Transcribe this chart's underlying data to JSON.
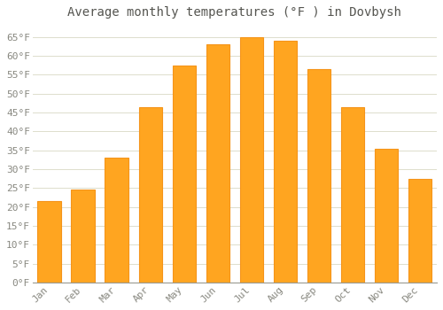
{
  "title": "Average monthly temperatures (°F ) in Dovbysh",
  "months": [
    "Jan",
    "Feb",
    "Mar",
    "Apr",
    "May",
    "Jun",
    "Jul",
    "Aug",
    "Sep",
    "Oct",
    "Nov",
    "Dec"
  ],
  "values": [
    21.5,
    24.5,
    33.0,
    46.5,
    57.5,
    63.0,
    65.0,
    64.0,
    56.5,
    46.5,
    35.5,
    27.5
  ],
  "bar_color": "#FFA520",
  "bar_edge_color": "#F5941A",
  "background_color": "#FFFFFF",
  "grid_color": "#DDDDCC",
  "text_color": "#888880",
  "title_color": "#555550",
  "ylim": [
    0,
    68
  ],
  "yticks": [
    0,
    5,
    10,
    15,
    20,
    25,
    30,
    35,
    40,
    45,
    50,
    55,
    60,
    65
  ],
  "title_fontsize": 10,
  "tick_fontsize": 8
}
